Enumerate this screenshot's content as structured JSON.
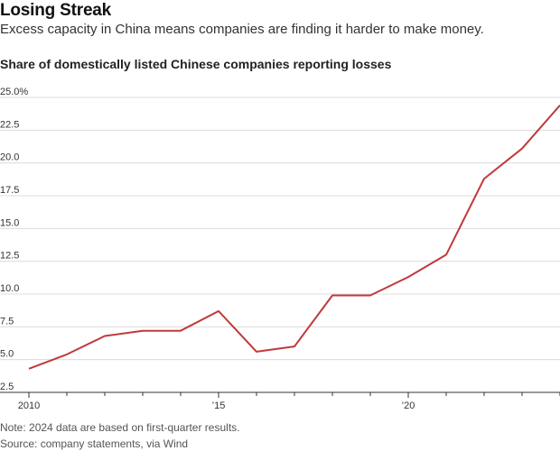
{
  "header": {
    "title": "Losing Streak",
    "subtitle": "Excess capacity in China means companies are finding it harder to make money."
  },
  "footer": {
    "note": "Note: 2024 data are based on first-quarter results.",
    "source": "Source: company statements, via Wind"
  },
  "chart_data": {
    "type": "line",
    "title": "Share of domestically listed Chinese companies reporting losses",
    "xlabel": "",
    "ylabel": "",
    "xlim": [
      2010,
      2024
    ],
    "ylim": [
      2.5,
      25
    ],
    "grid": true,
    "x_ticks": [
      {
        "value": 2010,
        "label": "2010"
      },
      {
        "value": 2015,
        "label": "’15"
      },
      {
        "value": 2020,
        "label": "’20"
      }
    ],
    "y_ticks": [
      {
        "value": 25,
        "label": "25.0%"
      },
      {
        "value": 22.5,
        "label": "22.5"
      },
      {
        "value": 20,
        "label": "20.0"
      },
      {
        "value": 17.5,
        "label": "17.5"
      },
      {
        "value": 15,
        "label": "15.0"
      },
      {
        "value": 12.5,
        "label": "12.5"
      },
      {
        "value": 10,
        "label": "10.0"
      },
      {
        "value": 7.5,
        "label": "7.5"
      },
      {
        "value": 5,
        "label": "5.0"
      },
      {
        "value": 2.5,
        "label": "2.5"
      }
    ],
    "series": [
      {
        "color": "#c0393b",
        "x": [
          2010,
          2011,
          2012,
          2013,
          2014,
          2015,
          2016,
          2017,
          2018,
          2019,
          2020,
          2021,
          2022,
          2023,
          2024
        ],
        "values": [
          4.3,
          5.4,
          6.8,
          7.2,
          7.2,
          8.7,
          5.6,
          6.0,
          9.9,
          9.9,
          11.3,
          13.0,
          18.8,
          21.1,
          24.4
        ]
      }
    ]
  }
}
